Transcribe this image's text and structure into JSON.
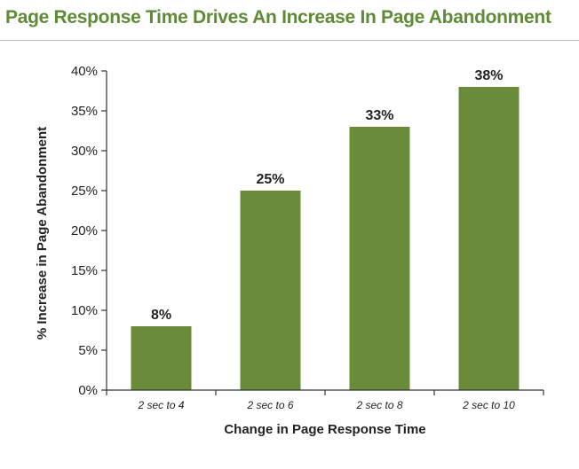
{
  "chart_data": {
    "type": "bar",
    "title": "Page Response Time Drives An Increase In Page Abandonment",
    "xlabel": "Change in Page Response Time",
    "ylabel": "% Increase in Page Abandonment",
    "categories": [
      "2 sec to 4",
      "2 sec to 6",
      "2 sec to 8",
      "2 sec to 10"
    ],
    "values": [
      8,
      25,
      33,
      38
    ],
    "data_labels": [
      "8%",
      "25%",
      "33%",
      "38%"
    ],
    "ylim": [
      0,
      40
    ],
    "yticks": [
      0,
      5,
      10,
      15,
      20,
      25,
      30,
      35,
      40
    ],
    "ytick_labels": [
      "0%",
      "5%",
      "10%",
      "15%",
      "20%",
      "25%",
      "30%",
      "35%",
      "40%"
    ],
    "grid": false,
    "legend": "none"
  },
  "colors": {
    "title": "#5e8b35",
    "bar": "#6a8c3a",
    "axis": "#333333"
  }
}
